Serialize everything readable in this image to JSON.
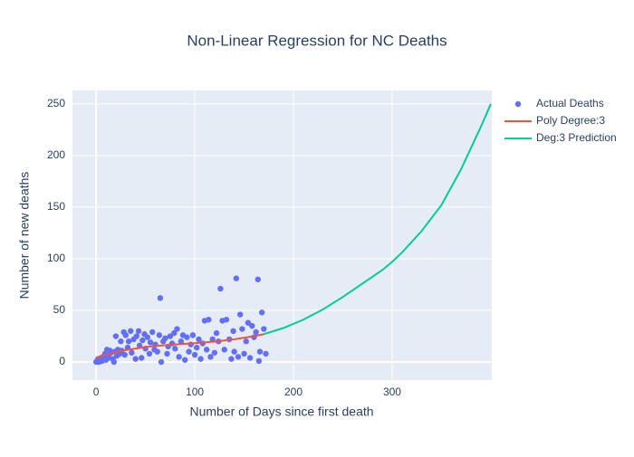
{
  "chart_data": {
    "type": "scatter",
    "title": "Non-Linear Regression for NC Deaths",
    "xlabel": "Number of Days since first death",
    "ylabel": "Number of new deaths",
    "xlim": [
      -24,
      401
    ],
    "ylim": [
      -17.5,
      263
    ],
    "xticks": [
      0,
      100,
      200,
      300
    ],
    "yticks": [
      0,
      50,
      100,
      150,
      200,
      250
    ],
    "grid": true,
    "legend": "right",
    "series": [
      {
        "name": "Actual Deaths",
        "color": "#636efa",
        "mode": "markers",
        "x": [
          0,
          1,
          2,
          3,
          4,
          5,
          6,
          7,
          8,
          9,
          10,
          11,
          12,
          13,
          14,
          15,
          17,
          18,
          19,
          20,
          21,
          22,
          24,
          25,
          26,
          28,
          29,
          30,
          32,
          33,
          35,
          36,
          38,
          40,
          41,
          43,
          44,
          46,
          47,
          49,
          50,
          52,
          54,
          55,
          57,
          59,
          60,
          62,
          64,
          65,
          66,
          68,
          70,
          72,
          73,
          75,
          77,
          79,
          80,
          82,
          84,
          86,
          88,
          90,
          92,
          94,
          96,
          98,
          100,
          102,
          104,
          106,
          108,
          110,
          112,
          114,
          116,
          118,
          120,
          122,
          124,
          126,
          128,
          130,
          132,
          135,
          137,
          139,
          140,
          142,
          144,
          146,
          148,
          150,
          152,
          154,
          156,
          158,
          160,
          162,
          164,
          165,
          166,
          168,
          170,
          172
        ],
        "values": [
          0,
          1,
          3,
          0,
          2,
          4,
          1,
          5,
          3,
          8,
          2,
          12,
          6,
          4,
          11,
          9,
          3,
          0,
          10,
          25,
          6,
          12,
          8,
          20,
          11,
          29,
          7,
          26,
          14,
          20,
          30,
          9,
          22,
          3,
          25,
          30,
          16,
          4,
          21,
          27,
          13,
          24,
          8,
          19,
          29,
          12,
          17,
          10,
          26,
          62,
          0,
          20,
          23,
          8,
          15,
          25,
          18,
          28,
          13,
          32,
          5,
          20,
          26,
          2,
          24,
          10,
          17,
          26,
          7,
          14,
          22,
          3,
          18,
          40,
          12,
          41,
          5,
          22,
          9,
          28,
          20,
          71,
          40,
          12,
          41,
          22,
          3,
          30,
          10,
          81,
          5,
          46,
          32,
          8,
          20,
          38,
          4,
          35,
          24,
          29,
          80,
          1,
          10,
          48,
          32,
          8
        ]
      },
      {
        "name": "Poly Degree:3",
        "color": "#ef553b",
        "mode": "lines",
        "x": [
          0,
          10,
          20,
          30,
          40,
          50,
          60,
          70,
          80,
          90,
          100,
          110,
          120,
          130,
          140,
          150,
          160,
          170
        ],
        "values": [
          4,
          7,
          9.5,
          11.5,
          13,
          14.5,
          15.5,
          16.3,
          17,
          17.6,
          18.2,
          19,
          19.8,
          20.8,
          22,
          23.5,
          25,
          27
        ]
      },
      {
        "name": "Deg:3 Prediction",
        "color": "#00cc96",
        "mode": "lines",
        "x": [
          170,
          190,
          210,
          230,
          250,
          270,
          290,
          300,
          310,
          330,
          350,
          370,
          390,
          400
        ],
        "values": [
          27,
          33,
          41,
          51,
          63,
          76,
          89,
          97,
          106,
          127,
          152,
          187,
          228,
          250
        ]
      }
    ]
  }
}
